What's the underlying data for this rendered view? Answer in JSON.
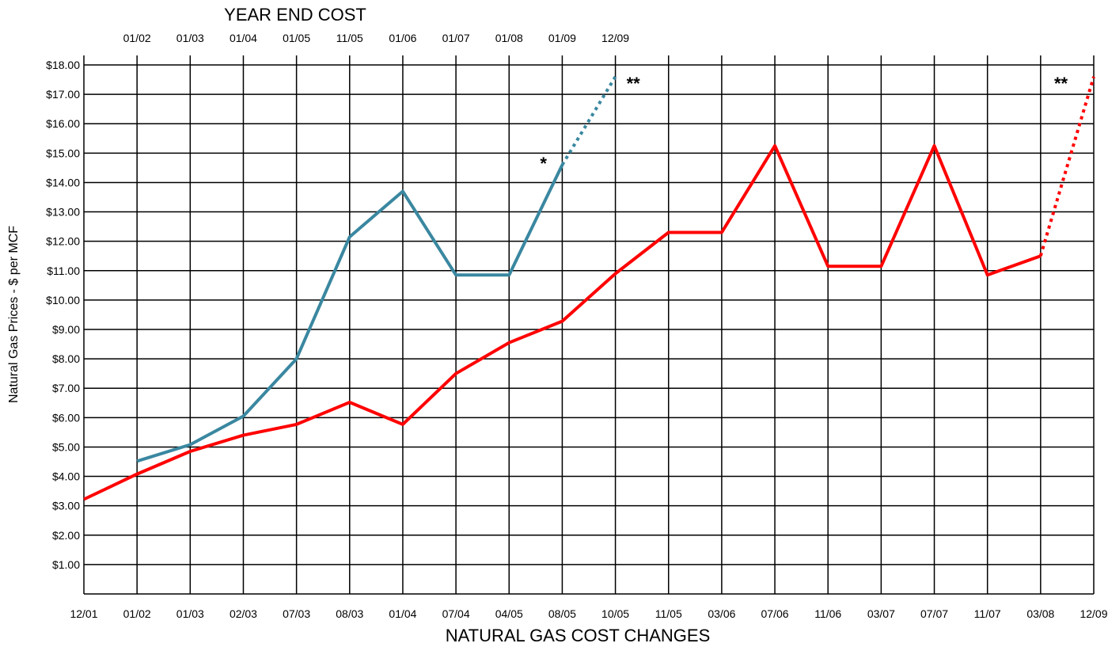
{
  "chart_data": {
    "type": "line",
    "top_title": "YEAR END COST",
    "xlabel": "NATURAL GAS COST CHANGES",
    "ylabel": "Natural Gas Prices - $ per MCF",
    "y_tick_labels": [
      "$1.00",
      "$2.00",
      "$3.00",
      "$4.00",
      "$5.00",
      "$6.00",
      "$7.00",
      "$8.00",
      "$9.00",
      "$10.00",
      "$11.00",
      "$12.00",
      "$13.00",
      "$14.00",
      "$15.00",
      "$16.00",
      "$17.00",
      "$18.00"
    ],
    "ylim": [
      0,
      18
    ],
    "grid": true,
    "top_categories": [
      "01/02",
      "01/03",
      "01/04",
      "01/05",
      "11/05",
      "01/06",
      "01/07",
      "01/08",
      "01/09",
      "12/09"
    ],
    "bottom_categories": [
      "12/01",
      "01/02",
      "01/03",
      "02/03",
      "07/03",
      "08/03",
      "01/04",
      "07/04",
      "04/05",
      "08/05",
      "10/05",
      "11/05",
      "03/06",
      "07/06",
      "11/06",
      "03/07",
      "07/07",
      "11/07",
      "03/08",
      "12/09"
    ],
    "series": [
      {
        "axis": "top",
        "color": "#3a87a0",
        "values": [
          4.52,
          5.08,
          6.05,
          8.0,
          12.15,
          13.7,
          10.85,
          10.85,
          14.6,
          17.6
        ],
        "dotted_from_index": 8,
        "marker_single": {
          "text": "*",
          "at_index": 8
        },
        "marker_double": {
          "text": "**",
          "at_index": 9
        }
      },
      {
        "axis": "bottom",
        "color": "#ff0000",
        "values": [
          3.22,
          4.08,
          4.85,
          5.4,
          5.77,
          6.52,
          5.77,
          7.5,
          8.55,
          9.28,
          10.9,
          12.3,
          12.3,
          15.25,
          11.15,
          11.15,
          15.25,
          10.85,
          11.5,
          17.6
        ],
        "dotted_from_index": 18,
        "marker_double": {
          "text": "**",
          "at_index": 19
        }
      }
    ]
  }
}
